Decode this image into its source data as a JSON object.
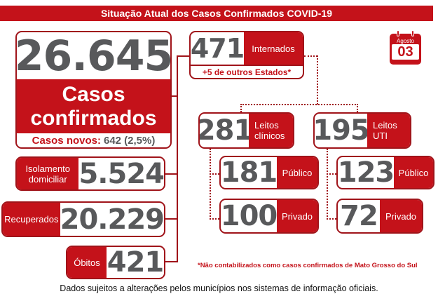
{
  "title": "Situação Atual dos Casos Confirmados COVID-19",
  "calendar": {
    "month": "Agosto",
    "day": "03"
  },
  "confirmed": {
    "value": "26.645",
    "label_line1": "Casos",
    "label_line2": "confirmados",
    "new_label": "Casos novos:",
    "new_value": "642 (2,5%)"
  },
  "isolation": {
    "label": "Isolamento domiciliar",
    "value": "5.524"
  },
  "recovered": {
    "label": "Recuperados",
    "value": "20.229"
  },
  "deaths": {
    "label": "Óbitos",
    "value": "421"
  },
  "hospitalized": {
    "value": "471",
    "label": "Internados",
    "note": "+5 de outros Estados*"
  },
  "clinical_beds": {
    "value": "281",
    "label": "Leitos clínicos",
    "public": {
      "value": "181",
      "label": "Público"
    },
    "private": {
      "value": "100",
      "label": "Privado"
    }
  },
  "icu_beds": {
    "value": "195",
    "label": "Leitos UTI",
    "public": {
      "value": "123",
      "label": "Público"
    },
    "private": {
      "value": "72",
      "label": "Privado"
    }
  },
  "footnote": "*Não contabilizados como casos confirmados de Mato Grosso do Sul",
  "disclaimer": "Dados sujeitos a alterações pelos municípios nos sistemas de informação oficiais.",
  "colors": {
    "accent": "#c4121a",
    "number": "#58595b"
  }
}
